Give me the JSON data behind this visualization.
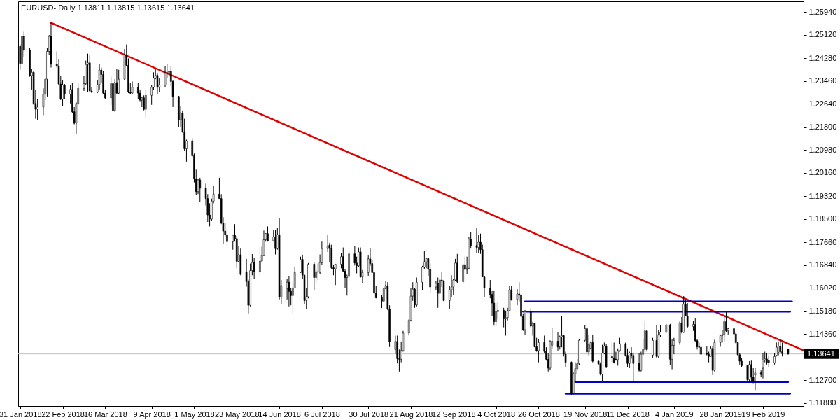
{
  "chart_data": {
    "type": "candlestick",
    "title": "EURUSD-,Daily 1.13811 1.13815 1.13615 1.13641",
    "color": "#000000",
    "x": [
      "2018-01-31",
      "2018-02-01",
      "2018-02-02",
      "2018-02-05",
      "2018-02-06",
      "2018-02-07",
      "2018-02-08",
      "2018-02-09",
      "2018-02-12",
      "2018-02-13",
      "2018-02-14",
      "2018-02-15",
      "2018-02-16",
      "2018-02-19",
      "2018-02-20",
      "2018-02-21",
      "2018-02-22",
      "2018-02-23",
      "2018-02-26",
      "2018-02-27",
      "2018-02-28",
      "2018-03-01",
      "2018-03-02",
      "2018-03-05",
      "2018-03-06",
      "2018-03-07",
      "2018-03-08",
      "2018-03-09",
      "2018-03-12",
      "2018-03-13",
      "2018-03-14",
      "2018-03-15",
      "2018-03-16",
      "2018-03-19",
      "2018-03-20",
      "2018-03-21",
      "2018-03-22",
      "2018-03-23",
      "2018-03-26",
      "2018-03-27",
      "2018-03-28",
      "2018-03-29",
      "2018-03-30",
      "2018-04-02",
      "2018-04-03",
      "2018-04-04",
      "2018-04-05",
      "2018-04-06",
      "2018-04-09",
      "2018-04-10",
      "2018-04-11",
      "2018-04-12",
      "2018-04-13",
      "2018-04-16",
      "2018-04-17",
      "2018-04-18",
      "2018-04-19",
      "2018-04-20",
      "2018-04-23",
      "2018-04-24",
      "2018-04-25",
      "2018-04-26",
      "2018-04-27",
      "2018-04-30",
      "2018-05-01",
      "2018-05-02",
      "2018-05-03",
      "2018-05-04",
      "2018-05-07",
      "2018-05-08",
      "2018-05-09",
      "2018-05-10",
      "2018-05-11",
      "2018-05-14",
      "2018-05-15",
      "2018-05-16",
      "2018-05-17",
      "2018-05-18",
      "2018-05-21",
      "2018-05-22",
      "2018-05-23",
      "2018-05-24",
      "2018-05-25",
      "2018-05-28",
      "2018-05-29",
      "2018-05-30",
      "2018-05-31",
      "2018-06-01",
      "2018-06-04",
      "2018-06-05",
      "2018-06-06",
      "2018-06-07",
      "2018-06-08",
      "2018-06-11",
      "2018-06-12",
      "2018-06-13",
      "2018-06-14",
      "2018-06-15",
      "2018-06-18",
      "2018-06-19",
      "2018-06-20",
      "2018-06-21",
      "2018-06-22",
      "2018-06-25",
      "2018-06-26",
      "2018-06-27",
      "2018-06-28",
      "2018-06-29",
      "2018-07-02",
      "2018-07-03",
      "2018-07-04",
      "2018-07-05",
      "2018-07-06",
      "2018-07-09",
      "2018-07-10",
      "2018-07-11",
      "2018-07-12",
      "2018-07-13",
      "2018-07-16",
      "2018-07-17",
      "2018-07-18",
      "2018-07-19",
      "2018-07-20",
      "2018-07-23",
      "2018-07-24",
      "2018-07-25",
      "2018-07-26",
      "2018-07-27",
      "2018-07-30",
      "2018-07-31",
      "2018-08-01",
      "2018-08-02",
      "2018-08-03",
      "2018-08-06",
      "2018-08-07",
      "2018-08-08",
      "2018-08-09",
      "2018-08-10",
      "2018-08-13",
      "2018-08-14",
      "2018-08-15",
      "2018-08-16",
      "2018-08-17",
      "2018-08-20",
      "2018-08-21",
      "2018-08-22",
      "2018-08-23",
      "2018-08-24",
      "2018-08-27",
      "2018-08-28",
      "2018-08-29",
      "2018-08-30",
      "2018-08-31",
      "2018-09-03",
      "2018-09-04",
      "2018-09-05",
      "2018-09-06",
      "2018-09-07",
      "2018-09-10",
      "2018-09-11",
      "2018-09-12",
      "2018-09-13",
      "2018-09-14",
      "2018-09-17",
      "2018-09-18",
      "2018-09-19",
      "2018-09-20",
      "2018-09-21",
      "2018-09-24",
      "2018-09-25",
      "2018-09-26",
      "2018-09-27",
      "2018-09-28",
      "2018-10-01",
      "2018-10-02",
      "2018-10-03",
      "2018-10-04",
      "2018-10-05",
      "2018-10-08",
      "2018-10-09",
      "2018-10-10",
      "2018-10-11",
      "2018-10-12",
      "2018-10-15",
      "2018-10-16",
      "2018-10-17",
      "2018-10-18",
      "2018-10-19",
      "2018-10-22",
      "2018-10-23",
      "2018-10-24",
      "2018-10-25",
      "2018-10-26",
      "2018-10-29",
      "2018-10-30",
      "2018-10-31",
      "2018-11-01",
      "2018-11-02",
      "2018-11-05",
      "2018-11-06",
      "2018-11-07",
      "2018-11-08",
      "2018-11-09",
      "2018-11-12",
      "2018-11-13",
      "2018-11-14",
      "2018-11-15",
      "2018-11-16",
      "2018-11-19",
      "2018-11-20",
      "2018-11-21",
      "2018-11-22",
      "2018-11-23",
      "2018-11-26",
      "2018-11-27",
      "2018-11-28",
      "2018-11-29",
      "2018-11-30",
      "2018-12-03",
      "2018-12-04",
      "2018-12-05",
      "2018-12-06",
      "2018-12-07",
      "2018-12-10",
      "2018-12-11",
      "2018-12-12",
      "2018-12-13",
      "2018-12-14",
      "2018-12-17",
      "2018-12-18",
      "2018-12-19",
      "2018-12-20",
      "2018-12-21",
      "2018-12-24",
      "2018-12-26",
      "2018-12-27",
      "2018-12-28",
      "2018-12-31",
      "2019-01-02",
      "2019-01-03",
      "2019-01-04",
      "2019-01-07",
      "2019-01-08",
      "2019-01-09",
      "2019-01-10",
      "2019-01-11",
      "2019-01-14",
      "2019-01-15",
      "2019-01-16",
      "2019-01-17",
      "2019-01-18",
      "2019-01-21",
      "2019-01-22",
      "2019-01-23",
      "2019-01-24",
      "2019-01-25",
      "2019-01-28",
      "2019-01-29",
      "2019-01-30",
      "2019-01-31",
      "2019-02-01",
      "2019-02-04",
      "2019-02-05",
      "2019-02-06",
      "2019-02-07",
      "2019-02-08",
      "2019-02-11",
      "2019-02-12",
      "2019-02-13",
      "2019-02-14",
      "2019-02-15",
      "2019-02-18",
      "2019-02-19",
      "2019-02-20",
      "2019-02-21",
      "2019-02-22",
      "2019-02-25",
      "2019-02-26",
      "2019-02-27",
      "2019-02-28",
      "2019-03-01",
      "2019-03-04"
    ],
    "ohlc": [
      [
        1.247,
        1.2477,
        1.2386,
        1.2409
      ],
      [
        1.2409,
        1.2523,
        1.2386,
        1.2506
      ],
      [
        1.2506,
        1.2523,
        1.2431,
        1.2456
      ],
      [
        1.2456,
        1.2465,
        1.2361,
        1.2365
      ],
      [
        1.2365,
        1.239,
        1.2315,
        1.2377
      ],
      [
        1.2377,
        1.2381,
        1.226,
        1.2265
      ],
      [
        1.2265,
        1.2315,
        1.221,
        1.2244
      ],
      [
        1.2244,
        1.2281,
        1.2206,
        1.2252
      ],
      [
        1.2252,
        1.2319,
        1.2223,
        1.2298
      ],
      [
        1.2298,
        1.2356,
        1.2277,
        1.2352
      ],
      [
        1.2352,
        1.2465,
        1.229,
        1.2452
      ],
      [
        1.2452,
        1.2511,
        1.244,
        1.2506
      ],
      [
        1.2506,
        1.2555,
        1.2394,
        1.2406
      ],
      [
        1.2406,
        1.2452,
        1.2394,
        1.24
      ],
      [
        1.24,
        1.2423,
        1.2331,
        1.2335
      ],
      [
        1.2335,
        1.2365,
        1.2277,
        1.2281
      ],
      [
        1.2281,
        1.2348,
        1.2256,
        1.2331
      ],
      [
        1.2331,
        1.2335,
        1.2281,
        1.2298
      ],
      [
        1.2298,
        1.2331,
        1.2265,
        1.2315
      ],
      [
        1.2315,
        1.234,
        1.2231,
        1.2235
      ],
      [
        1.2235,
        1.2252,
        1.219,
        1.2194
      ],
      [
        1.2194,
        1.2269,
        1.2156,
        1.2265
      ],
      [
        1.2265,
        1.2336,
        1.226,
        1.2319
      ],
      [
        1.2319,
        1.2365,
        1.231,
        1.2336
      ],
      [
        1.2336,
        1.2419,
        1.2331,
        1.2405
      ],
      [
        1.2405,
        1.2444,
        1.2306,
        1.2411
      ],
      [
        1.2411,
        1.244,
        1.2306,
        1.231
      ],
      [
        1.231,
        1.2323,
        1.2302,
        1.2306
      ],
      [
        1.2306,
        1.2348,
        1.2302,
        1.2333
      ],
      [
        1.2333,
        1.2408,
        1.2315,
        1.2385
      ],
      [
        1.2385,
        1.2394,
        1.234,
        1.2369
      ],
      [
        1.2369,
        1.2381,
        1.2298,
        1.2302
      ],
      [
        1.2302,
        1.2315,
        1.2281,
        1.2285
      ],
      [
        1.2285,
        1.2361,
        1.226,
        1.2336
      ],
      [
        1.2336,
        1.234,
        1.2235,
        1.224
      ],
      [
        1.224,
        1.2352,
        1.2235,
        1.234
      ],
      [
        1.234,
        1.2388,
        1.2298,
        1.2302
      ],
      [
        1.2302,
        1.2386,
        1.2298,
        1.2352
      ],
      [
        1.2352,
        1.2461,
        1.2348,
        1.244
      ],
      [
        1.244,
        1.2477,
        1.2398,
        1.2402
      ],
      [
        1.2402,
        1.2427,
        1.2302,
        1.2306
      ],
      [
        1.2306,
        1.234,
        1.2298,
        1.2302
      ],
      [
        1.2302,
        1.2344,
        1.2298,
        1.2323
      ],
      [
        1.2323,
        1.234,
        1.2281,
        1.2302
      ],
      [
        1.2302,
        1.2315,
        1.2273,
        1.2277
      ],
      [
        1.2277,
        1.229,
        1.2252,
        1.2285
      ],
      [
        1.2285,
        1.2294,
        1.224,
        1.2244
      ],
      [
        1.2244,
        1.2315,
        1.2215,
        1.2294
      ],
      [
        1.2294,
        1.2331,
        1.226,
        1.2323
      ],
      [
        1.2323,
        1.2377,
        1.2315,
        1.2356
      ],
      [
        1.2356,
        1.239,
        1.2352,
        1.2366
      ],
      [
        1.2366,
        1.2373,
        1.2298,
        1.2323
      ],
      [
        1.2323,
        1.2356,
        1.2306,
        1.2331
      ],
      [
        1.2331,
        1.2398,
        1.2323,
        1.2373
      ],
      [
        1.2373,
        1.2406,
        1.2356,
        1.2377
      ],
      [
        1.2377,
        1.2398,
        1.2365,
        1.2381
      ],
      [
        1.2381,
        1.2398,
        1.2327,
        1.2344
      ],
      [
        1.2344,
        1.2348,
        1.2252,
        1.229
      ],
      [
        1.229,
        1.2292,
        1.2181,
        1.2206
      ],
      [
        1.2206,
        1.2256,
        1.2181,
        1.2231
      ],
      [
        1.2231,
        1.224,
        1.216,
        1.2162
      ],
      [
        1.2162,
        1.221,
        1.2094,
        1.2102
      ],
      [
        1.2102,
        1.2135,
        1.2056,
        1.2131
      ],
      [
        1.2131,
        1.214,
        1.2073,
        1.2077
      ],
      [
        1.2077,
        1.2085,
        1.1981,
        1.1994
      ],
      [
        1.1994,
        1.2027,
        1.1935,
        1.1948
      ],
      [
        1.1948,
        1.1994,
        1.1939,
        1.199
      ],
      [
        1.199,
        1.1998,
        1.191,
        1.196
      ],
      [
        1.196,
        1.1977,
        1.1898,
        1.1923
      ],
      [
        1.1923,
        1.1939,
        1.1839,
        1.1864
      ],
      [
        1.1864,
        1.1906,
        1.1823,
        1.1849
      ],
      [
        1.1849,
        1.1923,
        1.1843,
        1.1914
      ],
      [
        1.1914,
        1.1968,
        1.1906,
        1.1939
      ],
      [
        1.1939,
        1.1998,
        1.1923,
        1.1923
      ],
      [
        1.1923,
        1.1939,
        1.1831,
        1.1835
      ],
      [
        1.1835,
        1.1856,
        1.176,
        1.1806
      ],
      [
        1.1806,
        1.1835,
        1.1785,
        1.1793
      ],
      [
        1.1793,
        1.1814,
        1.1747,
        1.1768
      ],
      [
        1.1768,
        1.1793,
        1.1739,
        1.1791
      ],
      [
        1.1791,
        1.1831,
        1.1768,
        1.1779
      ],
      [
        1.1779,
        1.1789,
        1.1672,
        1.1697
      ],
      [
        1.1697,
        1.1752,
        1.1693,
        1.1721
      ],
      [
        1.1721,
        1.1743,
        1.1647,
        1.165
      ],
      [
        1.166,
        1.1706,
        1.1606,
        1.1624
      ],
      [
        1.1624,
        1.1631,
        1.151,
        1.1539
      ],
      [
        1.1539,
        1.1689,
        1.1535,
        1.1664
      ],
      [
        1.1664,
        1.1723,
        1.1647,
        1.1693
      ],
      [
        1.1693,
        1.171,
        1.1635,
        1.166
      ],
      [
        1.166,
        1.175,
        1.1648,
        1.1698
      ],
      [
        1.1698,
        1.175,
        1.1693,
        1.1718
      ],
      [
        1.1718,
        1.1808,
        1.1716,
        1.1775
      ],
      [
        1.1775,
        1.1798,
        1.1768,
        1.1797
      ],
      [
        1.1797,
        1.1823,
        1.1768,
        1.1771
      ],
      [
        1.1771,
        1.181,
        1.1768,
        1.1785
      ],
      [
        1.1785,
        1.181,
        1.1722,
        1.1743
      ],
      [
        1.1743,
        1.1818,
        1.1739,
        1.1793
      ],
      [
        1.1793,
        1.1854,
        1.156,
        1.1568
      ],
      [
        1.1568,
        1.163,
        1.1543,
        1.161
      ],
      [
        1.16,
        1.1635,
        1.156,
        1.1622
      ],
      [
        1.1622,
        1.1645,
        1.1535,
        1.1589
      ],
      [
        1.1589,
        1.16,
        1.1539,
        1.1574
      ],
      [
        1.1574,
        1.1622,
        1.151,
        1.1601
      ],
      [
        1.1601,
        1.1676,
        1.1601,
        1.1657
      ],
      [
        1.1657,
        1.1714,
        1.1656,
        1.1704
      ],
      [
        1.1704,
        1.1721,
        1.1635,
        1.1647
      ],
      [
        1.1647,
        1.1649,
        1.1543,
        1.1556
      ],
      [
        1.1556,
        1.1601,
        1.1526,
        1.157
      ],
      [
        1.157,
        1.1691,
        1.1564,
        1.1687
      ],
      [
        1.1687,
        1.1693,
        1.1593,
        1.1639
      ],
      [
        1.1639,
        1.1668,
        1.1618,
        1.166
      ],
      [
        1.1658,
        1.1689,
        1.163,
        1.166
      ],
      [
        1.1658,
        1.1722,
        1.1651,
        1.1693
      ],
      [
        1.1693,
        1.1768,
        1.1685,
        1.1743
      ],
      [
        1.1743,
        1.1791,
        1.1731,
        1.1752
      ],
      [
        1.1756,
        1.1764,
        1.1693,
        1.1743
      ],
      [
        1.1743,
        1.1757,
        1.1668,
        1.1674
      ],
      [
        1.1674,
        1.1685,
        1.1647,
        1.167
      ],
      [
        1.167,
        1.1687,
        1.1612,
        1.1687
      ],
      [
        1.1687,
        1.1727,
        1.1672,
        1.1714
      ],
      [
        1.1714,
        1.1747,
        1.166,
        1.1662
      ],
      [
        1.1662,
        1.1668,
        1.1601,
        1.1639
      ],
      [
        1.1639,
        1.1649,
        1.1574,
        1.1643
      ],
      [
        1.1643,
        1.1739,
        1.1626,
        1.1724
      ],
      [
        1.1724,
        1.1751,
        1.1682,
        1.1691
      ],
      [
        1.1691,
        1.1714,
        1.1654,
        1.1681
      ],
      [
        1.1681,
        1.1747,
        1.1676,
        1.1731
      ],
      [
        1.1731,
        1.1747,
        1.1639,
        1.1641
      ],
      [
        1.1641,
        1.1666,
        1.1618,
        1.1657
      ],
      [
        1.1657,
        1.1718,
        1.1643,
        1.1706
      ],
      [
        1.1706,
        1.1745,
        1.1681,
        1.1689
      ],
      [
        1.1689,
        1.1701,
        1.1656,
        1.1657
      ],
      [
        1.1657,
        1.1662,
        1.158,
        1.1583
      ],
      [
        1.1583,
        1.161,
        1.1564,
        1.1566
      ],
      [
        1.1566,
        1.1576,
        1.1529,
        1.1554
      ],
      [
        1.1554,
        1.1601,
        1.1551,
        1.1599
      ],
      [
        1.1599,
        1.1626,
        1.1597,
        1.161
      ],
      [
        1.161,
        1.1622,
        1.1522,
        1.1526
      ],
      [
        1.1526,
        1.1539,
        1.1389,
        1.1409
      ],
      [
        1.138,
        1.143,
        1.1364,
        1.1409
      ],
      [
        1.1409,
        1.143,
        1.133,
        1.1347
      ],
      [
        1.1347,
        1.138,
        1.1301,
        1.1345
      ],
      [
        1.1345,
        1.1409,
        1.1334,
        1.1376
      ],
      [
        1.1376,
        1.1447,
        1.1372,
        1.1439
      ],
      [
        1.1439,
        1.1489,
        1.143,
        1.1485
      ],
      [
        1.1485,
        1.1601,
        1.1481,
        1.1572
      ],
      [
        1.1572,
        1.1622,
        1.1555,
        1.1597
      ],
      [
        1.1597,
        1.1601,
        1.153,
        1.154
      ],
      [
        1.154,
        1.1639,
        1.1535,
        1.1622
      ],
      [
        1.1622,
        1.1681,
        1.1593,
        1.1676
      ],
      [
        1.1676,
        1.1735,
        1.1668,
        1.1695
      ],
      [
        1.1695,
        1.171,
        1.1672,
        1.1707
      ],
      [
        1.1707,
        1.171,
        1.1643,
        1.1668
      ],
      [
        1.1668,
        1.1689,
        1.1585,
        1.1605
      ],
      [
        1.1605,
        1.1626,
        1.1593,
        1.1618
      ],
      [
        1.1618,
        1.1639,
        1.153,
        1.1582
      ],
      [
        1.1582,
        1.1639,
        1.1543,
        1.163
      ],
      [
        1.163,
        1.166,
        1.1605,
        1.1626
      ],
      [
        1.1626,
        1.163,
        1.1554,
        1.1556
      ],
      [
        1.1556,
        1.161,
        1.1526,
        1.1595
      ],
      [
        1.1595,
        1.1647,
        1.1568,
        1.1605
      ],
      [
        1.1605,
        1.1635,
        1.1576,
        1.163
      ],
      [
        1.163,
        1.1706,
        1.1626,
        1.1691
      ],
      [
        1.1691,
        1.1724,
        1.1618,
        1.1624
      ],
      [
        1.1624,
        1.1687,
        1.1616,
        1.1685
      ],
      [
        1.1685,
        1.1714,
        1.1666,
        1.1668
      ],
      [
        1.1668,
        1.1714,
        1.1651,
        1.1672
      ],
      [
        1.1672,
        1.1785,
        1.1668,
        1.1777
      ],
      [
        1.1777,
        1.1802,
        1.1743,
        1.1754
      ],
      [
        1.1754,
        1.1816,
        1.1727,
        1.1747
      ],
      [
        1.1747,
        1.1793,
        1.1727,
        1.1766
      ],
      [
        1.1766,
        1.1797,
        1.1724,
        1.1739
      ],
      [
        1.1739,
        1.1757,
        1.1641,
        1.1641
      ],
      [
        1.1641,
        1.1643,
        1.1568,
        1.1601
      ],
      [
        1.1601,
        1.163,
        1.1564,
        1.1578
      ],
      [
        1.1578,
        1.159,
        1.1501,
        1.1547
      ],
      [
        1.1547,
        1.159,
        1.1466,
        1.148
      ],
      [
        1.148,
        1.1547,
        1.1464,
        1.1516
      ],
      [
        1.1516,
        1.1549,
        1.1489,
        1.1521
      ],
      [
        1.1521,
        1.153,
        1.146,
        1.149
      ],
      [
        1.149,
        1.152,
        1.143,
        1.1495
      ],
      [
        1.1495,
        1.153,
        1.1485,
        1.152
      ],
      [
        1.152,
        1.161,
        1.1518,
        1.1595
      ],
      [
        1.1595,
        1.161,
        1.1556,
        1.156
      ],
      [
        1.156,
        1.1597,
        1.1539,
        1.158
      ],
      [
        1.158,
        1.1622,
        1.1551,
        1.1575
      ],
      [
        1.1575,
        1.158,
        1.1495,
        1.1499
      ],
      [
        1.1499,
        1.151,
        1.1447,
        1.1451
      ],
      [
        1.1451,
        1.1522,
        1.1434,
        1.1516
      ],
      [
        1.1516,
        1.1528,
        1.1459,
        1.1464
      ],
      [
        1.1464,
        1.148,
        1.143,
        1.1474
      ],
      [
        1.1474,
        1.1476,
        1.1388,
        1.139
      ],
      [
        1.139,
        1.1422,
        1.1372,
        1.1376
      ],
      [
        1.1376,
        1.1417,
        1.1334,
        1.1405
      ],
      [
        1.1405,
        1.143,
        1.1367,
        1.1373
      ],
      [
        1.1373,
        1.1388,
        1.134,
        1.1345
      ],
      [
        1.1345,
        1.1367,
        1.1301,
        1.1313
      ],
      [
        1.1313,
        1.1413,
        1.1305,
        1.1409
      ],
      [
        1.1395,
        1.1459,
        1.1384,
        1.141
      ],
      [
        1.141,
        1.1442,
        1.1376,
        1.1389
      ],
      [
        1.139,
        1.143,
        1.138,
        1.1426
      ],
      [
        1.1426,
        1.1501,
        1.1388,
        1.143
      ],
      [
        1.143,
        1.1434,
        1.1355,
        1.1363
      ],
      [
        1.1363,
        1.1372,
        1.1317,
        1.1334
      ],
      [
        1.1334,
        1.1337,
        1.1216,
        1.1222
      ],
      [
        1.1222,
        1.1297,
        1.1218,
        1.1292
      ],
      [
        1.1292,
        1.1334,
        1.1263,
        1.1311
      ],
      [
        1.1311,
        1.1346,
        1.1305,
        1.1329
      ],
      [
        1.1329,
        1.1417,
        1.1325,
        1.1413
      ],
      [
        1.1413,
        1.1468,
        1.1409,
        1.1455
      ],
      [
        1.1455,
        1.1472,
        1.1367,
        1.1371
      ],
      [
        1.1371,
        1.1434,
        1.1359,
        1.1397
      ],
      [
        1.1384,
        1.1409,
        1.138,
        1.1405
      ],
      [
        1.1405,
        1.1434,
        1.1334,
        1.1338
      ],
      [
        1.1338,
        1.1342,
        1.1326,
        1.1328
      ],
      [
        1.1328,
        1.1334,
        1.1287,
        1.1291
      ],
      [
        1.1291,
        1.1397,
        1.1267,
        1.1367
      ],
      [
        1.1367,
        1.1405,
        1.1363,
        1.1392
      ],
      [
        1.1392,
        1.1401,
        1.1313,
        1.1317
      ],
      [
        1.1355,
        1.1405,
        1.1334,
        1.135
      ],
      [
        1.135,
        1.1405,
        1.133,
        1.1334
      ],
      [
        1.1345,
        1.1372,
        1.134,
        1.1343
      ],
      [
        1.1343,
        1.1384,
        1.1322,
        1.1376
      ],
      [
        1.1376,
        1.1422,
        1.1372,
        1.1401
      ],
      [
        1.1401,
        1.1405,
        1.1355,
        1.1359
      ],
      [
        1.1359,
        1.1384,
        1.1317,
        1.133
      ],
      [
        1.133,
        1.1372,
        1.1313,
        1.1367
      ],
      [
        1.1367,
        1.1388,
        1.1347,
        1.1359
      ],
      [
        1.1359,
        1.1367,
        1.1267,
        1.133
      ],
      [
        1.133,
        1.1367,
        1.1301,
        1.1305
      ],
      [
        1.1305,
        1.1372,
        1.1301,
        1.1363
      ],
      [
        1.1363,
        1.1417,
        1.1355,
        1.138
      ],
      [
        1.138,
        1.1484,
        1.1372,
        1.1447
      ],
      [
        1.1447,
        1.1451,
        1.1372,
        1.138
      ],
      [
        1.136,
        1.1422,
        1.1351,
        1.1413
      ],
      [
        1.1413,
        1.1468,
        1.1351,
        1.1355
      ],
      [
        1.1355,
        1.1451,
        1.1351,
        1.1432
      ],
      [
        1.1432,
        1.1468,
        1.1426,
        1.1442
      ],
      [
        1.1442,
        1.1472,
        1.144,
        1.1468
      ],
      [
        1.1468,
        1.1472,
        1.1323,
        1.1345
      ],
      [
        1.1345,
        1.1417,
        1.1309,
        1.1395
      ],
      [
        1.1395,
        1.1422,
        1.1363,
        1.1413
      ],
      [
        1.1405,
        1.148,
        1.1397,
        1.1476
      ],
      [
        1.1476,
        1.1497,
        1.1438,
        1.1442
      ],
      [
        1.1442,
        1.1572,
        1.144,
        1.1543
      ],
      [
        1.1543,
        1.1559,
        1.1501,
        1.1501
      ],
      [
        1.1501,
        1.1547,
        1.1458,
        1.1463
      ],
      [
        1.1463,
        1.1484,
        1.1447,
        1.147
      ],
      [
        1.147,
        1.1493,
        1.1407,
        1.1412
      ],
      [
        1.1412,
        1.1418,
        1.138,
        1.139
      ],
      [
        1.139,
        1.1405,
        1.1363,
        1.1388
      ],
      [
        1.1388,
        1.1405,
        1.1359,
        1.1363
      ],
      [
        1.1365,
        1.1392,
        1.1359,
        1.1363
      ],
      [
        1.1363,
        1.1372,
        1.1334,
        1.1355
      ],
      [
        1.1355,
        1.1392,
        1.1355,
        1.1384
      ],
      [
        1.1384,
        1.1392,
        1.1288,
        1.1305
      ],
      [
        1.1305,
        1.1415,
        1.1301,
        1.1405
      ],
      [
        1.1405,
        1.1434,
        1.139,
        1.143
      ],
      [
        1.143,
        1.1451,
        1.1405,
        1.1434
      ],
      [
        1.1434,
        1.1501,
        1.1409,
        1.148
      ],
      [
        1.148,
        1.1514,
        1.1443,
        1.1447
      ],
      [
        1.1447,
        1.1459,
        1.1434,
        1.1455
      ],
      [
        1.1455,
        1.1457,
        1.1434,
        1.1436
      ],
      [
        1.1436,
        1.144,
        1.1402,
        1.1405
      ],
      [
        1.1405,
        1.1409,
        1.1359,
        1.1361
      ],
      [
        1.1361,
        1.1367,
        1.1326,
        1.1338
      ],
      [
        1.1338,
        1.135,
        1.1317,
        1.1322
      ],
      [
        1.1322,
        1.1325,
        1.1267,
        1.1271
      ],
      [
        1.1271,
        1.1338,
        1.1263,
        1.1326
      ],
      [
        1.1326,
        1.134,
        1.1263,
        1.128
      ],
      [
        1.128,
        1.1313,
        1.1259,
        1.1267
      ],
      [
        1.1288,
        1.1313,
        1.1234,
        1.1296
      ],
      [
        1.1296,
        1.1305,
        1.128,
        1.129
      ],
      [
        1.1313,
        1.1367,
        1.1276,
        1.1342
      ],
      [
        1.1342,
        1.1372,
        1.1334,
        1.1346
      ],
      [
        1.1346,
        1.1367,
        1.1326,
        1.1334
      ],
      [
        1.134,
        1.1359,
        1.1317,
        1.1332
      ],
      [
        1.1332,
        1.1367,
        1.1326,
        1.1355
      ],
      [
        1.1359,
        1.1405,
        1.1355,
        1.1388
      ],
      [
        1.137,
        1.1409,
        1.1359,
        1.1392
      ],
      [
        1.1392,
        1.1417,
        1.1367,
        1.1372
      ],
      [
        1.1372,
        1.1405,
        1.1355,
        1.1365
      ],
      [
        1.13811,
        1.13815,
        1.13615,
        1.13641
      ]
    ],
    "xlim": [
      "2018-01-30",
      "2019-03-12"
    ],
    "xticks": [
      {
        "value": "2018-01-31",
        "label": "31 Jan 2018"
      },
      {
        "value": "2018-02-22",
        "label": "22 Feb 2018"
      },
      {
        "value": "2018-03-16",
        "label": "16 Mar 2018"
      },
      {
        "value": "2018-04-09",
        "label": "9 Apr 2018"
      },
      {
        "value": "2018-05-01",
        "label": "1 May 2018"
      },
      {
        "value": "2018-05-23",
        "label": "23 May 2018"
      },
      {
        "value": "2018-06-14",
        "label": "14 Jun 2018"
      },
      {
        "value": "2018-07-06",
        "label": "6 Jul 2018"
      },
      {
        "value": "2018-07-30",
        "label": "30 Jul 2018"
      },
      {
        "value": "2018-08-21",
        "label": "21 Aug 2018"
      },
      {
        "value": "2018-09-12",
        "label": "12 Sep 2018"
      },
      {
        "value": "2018-10-04",
        "label": "4 Oct 2018"
      },
      {
        "value": "2018-10-26",
        "label": "26 Oct 2018"
      },
      {
        "value": "2018-11-19",
        "label": "19 Nov 2018"
      },
      {
        "value": "2018-12-11",
        "label": "11 Dec 2018"
      },
      {
        "value": "2019-01-04",
        "label": "4 Jan 2019"
      },
      {
        "value": "2019-01-28",
        "label": "28 Jan 2019"
      },
      {
        "value": "2019-02-19",
        "label": "19 Feb 2019"
      }
    ],
    "ylim": [
      1.1177,
      1.2632
    ],
    "yticks": [
      {
        "value": 1.2594,
        "label": "1.25940"
      },
      {
        "value": 1.2512,
        "label": "1.25120"
      },
      {
        "value": 1.2428,
        "label": "1.24280"
      },
      {
        "value": 1.2346,
        "label": "1.23460"
      },
      {
        "value": 1.2264,
        "label": "1.22640"
      },
      {
        "value": 1.218,
        "label": "1.21800"
      },
      {
        "value": 1.2098,
        "label": "1.20980"
      },
      {
        "value": 1.2016,
        "label": "1.20160"
      },
      {
        "value": 1.1932,
        "label": "1.19320"
      },
      {
        "value": 1.185,
        "label": "1.18500"
      },
      {
        "value": 1.1766,
        "label": "1.17660"
      },
      {
        "value": 1.1684,
        "label": "1.16840"
      },
      {
        "value": 1.1602,
        "label": "1.16020"
      },
      {
        "value": 1.1518,
        "label": "1.15180"
      },
      {
        "value": 1.1436,
        "label": "1.14360"
      },
      {
        "value": 1.127,
        "label": "1.12700"
      },
      {
        "value": 1.1188,
        "label": "1.11880"
      }
    ],
    "series": [
      {
        "type": "line",
        "color": "#e00000",
        "x": [
          "2018-02-16",
          "2019-03-12"
        ],
        "values": [
          1.2555,
          1.1377
        ]
      },
      {
        "type": "line",
        "color": "#0000c8",
        "x": [
          "2018-10-19",
          "2019-03-06"
        ],
        "values": [
          1.1553,
          1.1553
        ]
      },
      {
        "type": "line",
        "color": "#0000c8",
        "x": [
          "2018-10-18",
          "2019-03-05"
        ],
        "values": [
          1.1516,
          1.1516
        ]
      },
      {
        "type": "line",
        "color": "#0000c8",
        "x": [
          "2018-11-14",
          "2019-03-04"
        ],
        "values": [
          1.1263,
          1.1263
        ]
      },
      {
        "type": "line",
        "color": "#0000c8",
        "x": [
          "2018-11-09",
          "2019-03-05"
        ],
        "values": [
          1.1221,
          1.1221
        ]
      }
    ],
    "ref_lines": [
      {
        "axis": "y",
        "value": 1.13641,
        "label": "1.13641",
        "color": "#c0c0c0"
      }
    ]
  }
}
